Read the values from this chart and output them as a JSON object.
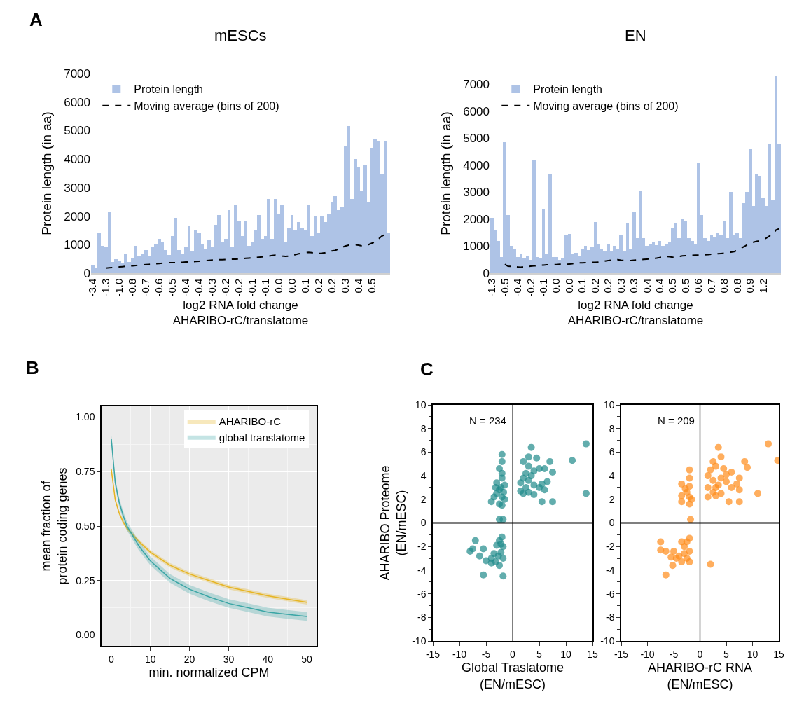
{
  "chart_data": [
    {
      "type": "bar",
      "title": "mESCs",
      "xlabel": "log2 RNA fold change\nAHARIBO-rC/translatome",
      "ylabel": "Protein length (in aa)",
      "annotations": [
        "A"
      ],
      "legend": "top left",
      "categories": [
        "-3.4",
        null,
        null,
        null,
        "-1.3",
        null,
        null,
        null,
        "-1.0",
        null,
        null,
        null,
        "-0.8",
        null,
        null,
        null,
        "-0.7",
        null,
        null,
        null,
        "-0.6",
        null,
        null,
        null,
        "-0.5",
        null,
        null,
        null,
        "-0.4",
        null,
        null,
        null,
        "-0.4",
        null,
        null,
        null,
        "-0.3",
        null,
        null,
        null,
        "-0.2",
        null,
        null,
        null,
        "-0.2",
        null,
        null,
        null,
        "-0.1",
        null,
        null,
        null,
        "-0.1",
        null,
        null,
        null,
        "0.0",
        null,
        null,
        null,
        "0.0",
        null,
        null,
        null,
        "0.1",
        null,
        null,
        null,
        "0.2",
        null,
        null,
        null,
        "0.2",
        null,
        null,
        null,
        "0.3",
        null,
        null,
        null,
        "0.4",
        null,
        null,
        null,
        "0.5",
        null,
        null,
        null,
        null,
        null
      ],
      "ylim": [
        0,
        7000
      ],
      "yticks": [
        0,
        1000,
        2000,
        3000,
        4000,
        5000,
        6000,
        7000
      ],
      "series": [
        {
          "name": "Protein length",
          "color": "#aec3e6",
          "values": [
            300,
            200,
            1400,
            950,
            900,
            2150,
            400,
            500,
            450,
            350,
            700,
            400,
            550,
            950,
            600,
            700,
            800,
            600,
            900,
            1000,
            1200,
            1100,
            800,
            650,
            1300,
            1950,
            800,
            700,
            900,
            1650,
            750,
            1500,
            1400,
            1000,
            850,
            1150,
            900,
            1700,
            2050,
            1100,
            1200,
            2200,
            900,
            2400,
            1850,
            1300,
            1850,
            950,
            1100,
            1500,
            2050,
            1200,
            1300,
            2600,
            1200,
            2600,
            2100,
            2400,
            1100,
            1600,
            2050,
            1500,
            1800,
            1600,
            1500,
            2400,
            1300,
            2000,
            1400,
            2000,
            1800,
            2100,
            2500,
            2700,
            2200,
            2300,
            4450,
            5150,
            2600,
            4000,
            3700,
            2900,
            3800,
            2500,
            4400,
            4700,
            4650,
            3500,
            4650,
            1400
          ]
        },
        {
          "name": "Moving average (bins of 200)",
          "type": "line",
          "color": "#000000",
          "line_style": "dashed",
          "values": [
            null,
            null,
            null,
            null,
            180,
            190,
            200,
            210,
            220,
            230,
            240,
            250,
            260,
            270,
            280,
            290,
            300,
            310,
            320,
            330,
            340,
            350,
            360,
            370,
            370,
            370,
            380,
            380,
            390,
            390,
            400,
            410,
            420,
            430,
            440,
            450,
            460,
            460,
            470,
            470,
            480,
            480,
            490,
            490,
            500,
            510,
            520,
            530,
            540,
            550,
            560,
            570,
            580,
            600,
            620,
            630,
            620,
            600,
            590,
            600,
            620,
            650,
            680,
            700,
            720,
            730,
            720,
            700,
            690,
            700,
            720,
            760,
            780,
            800,
            850,
            900,
            950,
            980,
            1000,
            1000,
            980,
            960,
            980,
            1000,
            1050,
            1100,
            1200,
            1300,
            1350,
            1280
          ]
        }
      ]
    },
    {
      "type": "bar",
      "title": "EN",
      "xlabel": "log2 RNA fold change\nAHARIBO-rC/translatome",
      "ylabel": "Protein length (in aa)",
      "legend": "top left",
      "categories": [
        "-1.3",
        null,
        null,
        null,
        "-0.5",
        null,
        null,
        null,
        "-0.4",
        null,
        null,
        null,
        "-0.2",
        null,
        null,
        null,
        "-0.1",
        null,
        null,
        null,
        "0.0",
        null,
        null,
        null,
        "0.0",
        null,
        null,
        null,
        "0.1",
        null,
        null,
        null,
        "0.2",
        null,
        null,
        null,
        "0.2",
        null,
        null,
        null,
        "0.3",
        null,
        null,
        null,
        "0.3",
        null,
        null,
        null,
        "0.4",
        null,
        null,
        null,
        "0.4",
        null,
        null,
        null,
        "0.5",
        null,
        null,
        null,
        "0.5",
        null,
        null,
        null,
        "0.6",
        null,
        null,
        null,
        "0.7",
        null,
        null,
        null,
        "0.8",
        null,
        null,
        null,
        "0.8",
        null,
        null,
        null,
        "0.9",
        null,
        null,
        null,
        "1.2",
        null,
        null,
        null,
        null,
        null
      ],
      "ylim": [
        0,
        7400
      ],
      "yticks": [
        0,
        1000,
        2000,
        3000,
        4000,
        5000,
        6000,
        7000
      ],
      "series": [
        {
          "name": "Protein length",
          "color": "#aec3e6",
          "values": [
            2050,
            1600,
            1200,
            600,
            4850,
            2150,
            1000,
            900,
            600,
            700,
            550,
            650,
            500,
            4200,
            600,
            550,
            2400,
            700,
            3650,
            600,
            600,
            500,
            550,
            1400,
            1450,
            700,
            750,
            650,
            900,
            1000,
            850,
            950,
            1900,
            1100,
            900,
            800,
            1100,
            800,
            1000,
            900,
            1400,
            800,
            1850,
            900,
            2250,
            1300,
            3050,
            1300,
            1000,
            1100,
            1150,
            1050,
            1200,
            1000,
            1100,
            1150,
            1700,
            1850,
            1300,
            2000,
            1950,
            1300,
            1200,
            1100,
            4100,
            2150,
            1300,
            1200,
            1400,
            1350,
            1500,
            1400,
            1950,
            1300,
            3000,
            1400,
            1500,
            1300,
            2600,
            3000,
            4600,
            2500,
            3700,
            3600,
            2800,
            2500,
            4800,
            2700,
            7300,
            4800
          ]
        },
        {
          "name": "Moving average (bins of 200)",
          "type": "line",
          "color": "#000000",
          "line_style": "dashed",
          "values": [
            null,
            null,
            null,
            null,
            330,
            260,
            250,
            240,
            230,
            220,
            240,
            250,
            260,
            270,
            280,
            300,
            300,
            310,
            310,
            320,
            320,
            330,
            330,
            330,
            340,
            350,
            370,
            380,
            380,
            390,
            390,
            400,
            400,
            410,
            420,
            450,
            470,
            480,
            490,
            500,
            480,
            470,
            470,
            470,
            480,
            490,
            500,
            510,
            520,
            530,
            550,
            560,
            580,
            600,
            620,
            610,
            590,
            600,
            620,
            640,
            650,
            660,
            660,
            670,
            670,
            670,
            680,
            690,
            700,
            710,
            720,
            730,
            740,
            760,
            780,
            800,
            850,
            920,
            980,
            1050,
            1100,
            1150,
            1180,
            1200,
            1250,
            1300,
            1380,
            1450,
            1600,
            1650
          ]
        }
      ]
    },
    {
      "type": "line",
      "xlabel": "min. normalized CPM",
      "ylabel": "mean fraction of\nprotein coding genes",
      "annotations": [
        "B"
      ],
      "legend": "top right",
      "grid": true,
      "xlim": [
        -2.5,
        52.5
      ],
      "xticks": [
        0,
        10,
        20,
        30,
        40,
        50
      ],
      "ylim": [
        -0.05,
        1.05
      ],
      "yticks": [
        {
          "value": 0,
          "label": "0.00"
        },
        {
          "value": 0.25,
          "label": "0.25"
        },
        {
          "value": 0.5,
          "label": "0.50"
        },
        {
          "value": 0.75,
          "label": "0.75"
        },
        {
          "value": 1,
          "label": "1.00"
        }
      ],
      "x": [
        0,
        1,
        2,
        3,
        4,
        5,
        7,
        10,
        15,
        20,
        25,
        30,
        35,
        40,
        45,
        50
      ],
      "series": [
        {
          "name": "AHARIBO-rC",
          "color": "#e6b422",
          "values": [
            0.76,
            0.62,
            0.56,
            0.52,
            0.49,
            0.47,
            0.43,
            0.38,
            0.32,
            0.28,
            0.25,
            0.22,
            0.2,
            0.18,
            0.165,
            0.15
          ],
          "lower": [
            0.75,
            0.61,
            0.55,
            0.51,
            0.48,
            0.46,
            0.42,
            0.37,
            0.31,
            0.27,
            0.24,
            0.21,
            0.19,
            0.17,
            0.155,
            0.14
          ],
          "upper": [
            0.77,
            0.63,
            0.57,
            0.53,
            0.5,
            0.48,
            0.44,
            0.39,
            0.33,
            0.29,
            0.26,
            0.23,
            0.21,
            0.19,
            0.175,
            0.16
          ]
        },
        {
          "name": "global translatome",
          "color": "#3aa5a5",
          "values": [
            0.9,
            0.7,
            0.61,
            0.55,
            0.5,
            0.47,
            0.41,
            0.34,
            0.26,
            0.21,
            0.175,
            0.145,
            0.125,
            0.105,
            0.095,
            0.085
          ],
          "lower": [
            0.88,
            0.68,
            0.59,
            0.53,
            0.48,
            0.45,
            0.39,
            0.32,
            0.24,
            0.19,
            0.155,
            0.125,
            0.105,
            0.085,
            0.075,
            0.065
          ],
          "upper": [
            0.92,
            0.72,
            0.63,
            0.57,
            0.52,
            0.49,
            0.43,
            0.36,
            0.28,
            0.23,
            0.195,
            0.165,
            0.145,
            0.125,
            0.115,
            0.105
          ]
        }
      ]
    },
    {
      "type": "scatter",
      "xlabel": "Global Traslatome\n(EN/mESC)",
      "ylabel": "AHARIBO Proteome\n(EN/mESC)",
      "annotations": [
        "C",
        "N = 234"
      ],
      "xlim": [
        -15,
        15
      ],
      "xticks": [
        -15,
        -10,
        -5,
        0,
        5,
        10,
        15
      ],
      "ylim": [
        -10,
        10
      ],
      "yticks": [
        -10,
        -8,
        -6,
        -4,
        -2,
        0,
        2,
        4,
        6,
        8,
        10
      ],
      "ref_lines": [
        {
          "axis": "x",
          "value": 0,
          "color": "#555555"
        },
        {
          "axis": "y",
          "value": 0,
          "color": "#000000"
        }
      ],
      "series": [
        {
          "color": "#1f8a8a",
          "x": [
            -2,
            -2,
            -2.5,
            -3,
            -2,
            -1.5,
            -2.5,
            -3,
            -2,
            -1.5,
            -2.5,
            -4,
            -3.5,
            -2,
            -2.5,
            -1.8,
            -2,
            -1.7,
            -3.2,
            -2.2,
            3.5,
            3,
            4.5,
            2,
            3,
            4,
            5,
            7,
            7.5,
            6,
            2,
            3,
            1.5,
            2.5,
            4,
            5,
            6.5,
            6,
            5.5,
            2,
            3,
            4,
            1.5,
            5.5,
            7.5,
            11.2,
            13.8,
            13.8,
            3.5,
            2.5,
            -2,
            -2.5,
            -1.8,
            -3,
            -2.2,
            -2.7,
            -1.8,
            -3.5,
            -4,
            -5,
            -5.5,
            -7,
            -7.5,
            -8,
            -6.2,
            -2.5,
            -5.5,
            -1.8,
            -4,
            -2.2,
            -3.2
          ],
          "values": [
            5.8,
            5.2,
            4.6,
            3.4,
            3.8,
            3.2,
            2.8,
            2.5,
            2.2,
            2,
            1.6,
            1.8,
            2.2,
            1.5,
            0.3,
            0.3,
            4.2,
            2.6,
            3,
            3,
            6.4,
            5.6,
            5.5,
            5.2,
            4.8,
            4.4,
            4.6,
            5.2,
            4.3,
            4.6,
            3.8,
            3.6,
            3.4,
            3,
            3.2,
            3,
            3.5,
            2.8,
            3.3,
            2.5,
            2.6,
            2.4,
            2.7,
            1.8,
            1.8,
            5.3,
            6.7,
            2.5,
            4,
            4.2,
            -1.2,
            -1.5,
            -2,
            -1.9,
            -2.5,
            -2.8,
            -3,
            -2.6,
            -3,
            -3.2,
            -2.2,
            -1.5,
            -2.2,
            -2.4,
            -2.8,
            -3.6,
            -4.4,
            -4.5,
            -3.4,
            -1.8,
            -3.3
          ]
        }
      ]
    },
    {
      "type": "scatter",
      "xlabel": "AHARIBO-rC RNA\n(EN/mESC)",
      "annotations": [
        "N = 209"
      ],
      "xlim": [
        -15,
        15
      ],
      "xticks": [
        -15,
        -10,
        -5,
        0,
        5,
        10,
        15
      ],
      "ylim": [
        -10,
        10
      ],
      "yticks": [
        -10,
        -8,
        -6,
        -4,
        -2,
        0,
        2,
        4,
        6,
        8,
        10
      ],
      "ref_lines": [
        {
          "axis": "x",
          "value": 0,
          "color": "#555555"
        },
        {
          "axis": "y",
          "value": 0,
          "color": "#000000"
        }
      ],
      "series": [
        {
          "color": "#ff8c1a",
          "x": [
            -2,
            -2,
            -3.5,
            -2,
            -2.5,
            -3.5,
            -2,
            -3.5,
            -2,
            -1.8,
            -2.8,
            -1.6,
            3.5,
            4,
            2.5,
            3,
            4.5,
            6,
            1.5,
            2.5,
            3.5,
            5,
            1.5,
            2.5,
            4,
            6,
            7.5,
            7,
            7.5,
            1.5,
            3,
            5.5,
            7.5,
            8.5,
            9,
            11,
            13,
            14.8,
            2,
            4,
            5,
            3,
            -2,
            -2.5,
            -3,
            -2,
            -3.5,
            -2.5,
            -3.5,
            -4,
            -5,
            -5.5,
            -6.5,
            -7.5,
            -7.5,
            -5.2,
            -6.5,
            -2,
            -4.5,
            -3,
            2
          ],
          "values": [
            4.5,
            3.8,
            3.3,
            3.1,
            2.6,
            2.3,
            2.2,
            1.8,
            1.6,
            0.3,
            2.9,
            2,
            6.4,
            5.6,
            5.2,
            4.8,
            4.6,
            4.3,
            4,
            3.6,
            3.2,
            3.5,
            3,
            2.6,
            2.5,
            3,
            3.8,
            3.3,
            2.8,
            2.2,
            2.3,
            1.8,
            1.8,
            5.2,
            4.7,
            2.5,
            6.7,
            5.3,
            4.5,
            3.8,
            4.1,
            3,
            -1.3,
            -1.6,
            -2,
            -2.4,
            -1.6,
            -3,
            -3.3,
            -2.8,
            -2.4,
            -2.9,
            -2.4,
            -1.6,
            -2.3,
            -3.6,
            -4.4,
            -3.3,
            -3,
            -2.6,
            -3.5
          ]
        }
      ]
    }
  ]
}
